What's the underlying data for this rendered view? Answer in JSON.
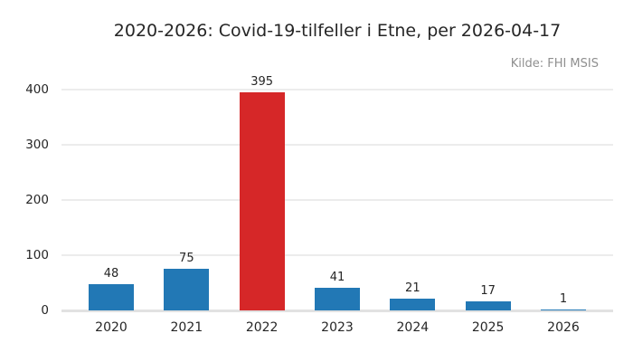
{
  "title": "2020-2026: Covid-19-tilfeller i Etne, per 2026-04-17",
  "source": "Kilde: FHI MSIS",
  "colors": {
    "bar": "#2278b5",
    "highlight": "#d62728",
    "grid": "#ececec",
    "axis_line": "#e2e2e2",
    "title_text": "#262626",
    "tick_text": "#262626",
    "source_text": "#8f8f8f",
    "background": "#ffffff"
  },
  "chart_data": {
    "type": "bar",
    "categories": [
      "2020",
      "2021",
      "2022",
      "2023",
      "2024",
      "2025",
      "2026"
    ],
    "values": [
      48,
      75,
      395,
      41,
      21,
      17,
      1
    ],
    "value_labels": [
      "48",
      "75",
      "395",
      "41",
      "21",
      "17",
      "1"
    ],
    "highlight_category": "2022",
    "title": "2020-2026: Covid-19-tilfeller i Etne, per 2026-04-17",
    "xlabel": "",
    "ylabel": "",
    "yticks": [
      0,
      100,
      200,
      300,
      400
    ],
    "ylim": [
      0,
      400
    ],
    "grid": true,
    "legend": false,
    "annotation_style": "values above bars"
  }
}
